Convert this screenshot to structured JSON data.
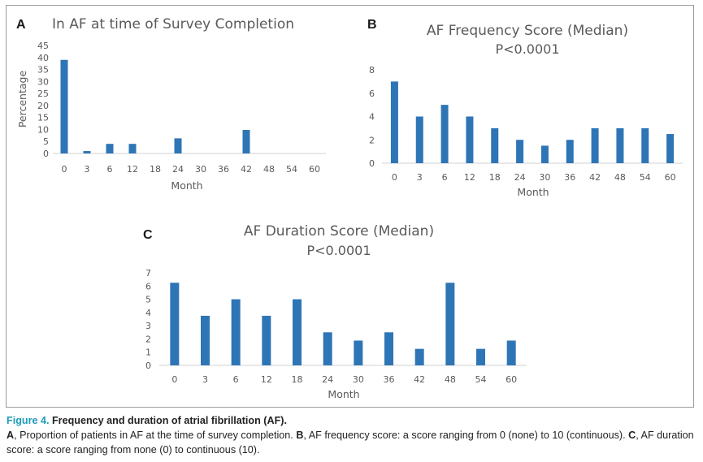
{
  "figure": {
    "caption_label": "Figure 4.",
    "caption_title": "Frequency and duration of atrial fibrillation (AF).",
    "caption_text": [
      {
        "letter": "A",
        "text": ", Proportion of patients in AF at the time of survey completion. "
      },
      {
        "letter": "B",
        "text": ", AF frequency score: a score ranging from 0 (none) to 10 (continuous). "
      },
      {
        "letter": "C",
        "text": ", AF duration score: a score ranging from none (0) to continuous (10)."
      }
    ]
  },
  "colors": {
    "bar": "#2e75b6",
    "text": "#5a5a5a",
    "caption_accent": "#1d9bb8"
  },
  "chart_data": [
    {
      "panel": "A",
      "type": "bar",
      "title": "In AF at time of Survey Completion",
      "subtitle": "",
      "xlabel": "Month",
      "ylabel": "Percentage",
      "categories": [
        "0",
        "3",
        "6",
        "12",
        "18",
        "24",
        "30",
        "36",
        "42",
        "48",
        "54",
        "60"
      ],
      "values": [
        39,
        1,
        4,
        4,
        0,
        6.3,
        0,
        0,
        9.8,
        0,
        0,
        0
      ],
      "ylim": [
        0,
        45
      ],
      "yticks": [
        0,
        5,
        10,
        15,
        20,
        25,
        30,
        35,
        40,
        45
      ],
      "grid": false
    },
    {
      "panel": "B",
      "type": "bar",
      "title": "AF Frequency Score (Median)",
      "subtitle": "P<0.0001",
      "xlabel": "Month",
      "ylabel": "",
      "categories": [
        "0",
        "3",
        "6",
        "12",
        "18",
        "24",
        "30",
        "36",
        "42",
        "48",
        "54",
        "60"
      ],
      "values": [
        7,
        4,
        5,
        4,
        3,
        2,
        1.5,
        2,
        3,
        3,
        3,
        2.5
      ],
      "ylim": [
        0,
        8
      ],
      "yticks": [
        0,
        2,
        4,
        6,
        8
      ],
      "grid": false
    },
    {
      "panel": "C",
      "type": "bar",
      "title": "AF Duration Score (Median)",
      "subtitle": "P<0.0001",
      "xlabel": "Month",
      "ylabel": "",
      "categories": [
        "0",
        "3",
        "6",
        "12",
        "18",
        "24",
        "30",
        "36",
        "42",
        "48",
        "54",
        "60"
      ],
      "values": [
        6.25,
        3.75,
        5,
        3.75,
        5,
        2.5,
        1.875,
        2.5,
        1.25,
        6.25,
        1.25,
        1.875
      ],
      "ylim": [
        0,
        7
      ],
      "yticks": [
        0,
        1,
        2,
        3,
        4,
        5,
        6,
        7
      ],
      "grid": false
    }
  ]
}
